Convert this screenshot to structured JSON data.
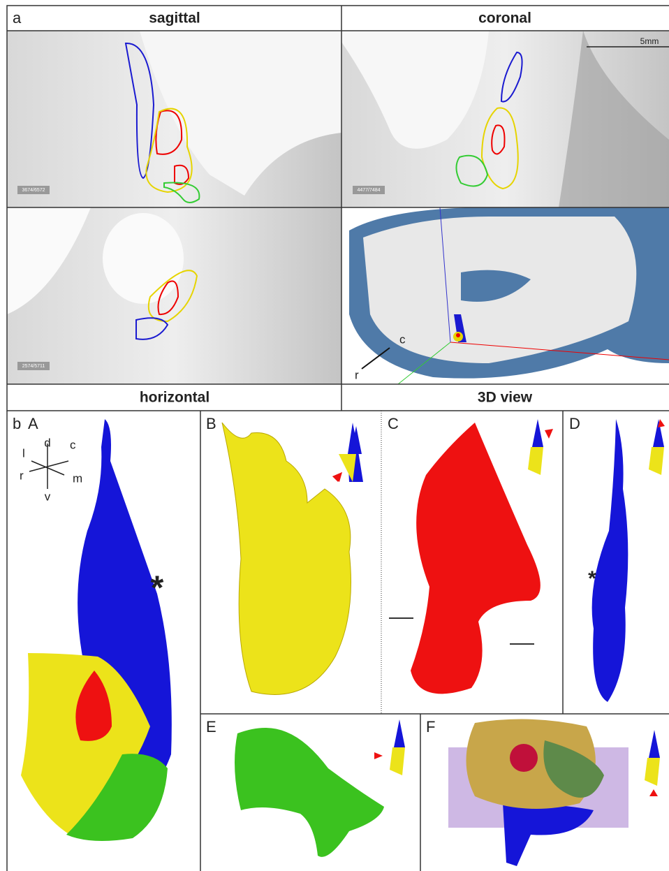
{
  "panel_a": {
    "label": "a",
    "views": [
      {
        "title": "sagittal",
        "counter": "3674/6572"
      },
      {
        "title": "coronal",
        "counter": "4477/7484",
        "scale_bar": "5mm"
      },
      {
        "title": "horizontal",
        "counter": "2574/5711"
      },
      {
        "title": "3D view",
        "axes": [
          "c",
          "r"
        ]
      }
    ]
  },
  "panel_b": {
    "label": "b",
    "subpanels": [
      {
        "label": "A",
        "orientation": [
          "d",
          "l",
          "c",
          "r",
          "m",
          "v"
        ],
        "marker": "*"
      },
      {
        "label": "B"
      },
      {
        "label": "C"
      },
      {
        "label": "D",
        "marker": "*"
      },
      {
        "label": "E"
      },
      {
        "label": "F"
      }
    ]
  }
}
